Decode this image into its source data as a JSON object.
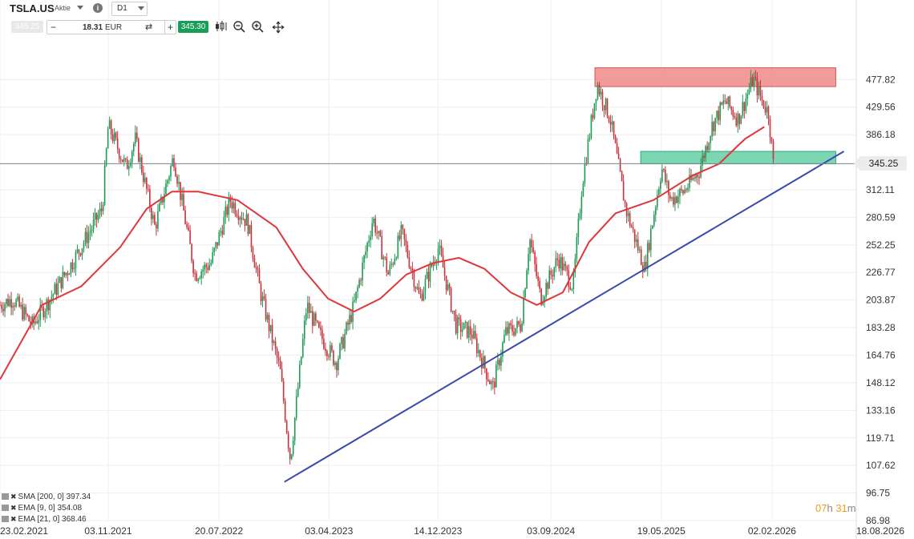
{
  "header": {
    "symbol": "TSLA.US",
    "asset_type": "Aktie",
    "timeframe": "D1",
    "bid": "345.25",
    "quantity": "18.31",
    "currency": "EUR",
    "ask": "345.30"
  },
  "current_price_label": "345.25",
  "countdown": {
    "hours": "07",
    "h_unit": "h",
    "minutes": "31",
    "m_unit": "m"
  },
  "indicators": [
    {
      "label": "SMA [200, 0] 397.34"
    },
    {
      "label": "EMA [9, 0] 354.08"
    },
    {
      "label": "EMA [21, 0] 368.46"
    }
  ],
  "colors": {
    "up_candle": "#1f9a55",
    "down_candle": "#c8323c",
    "ma_line": "#e0363a",
    "trend_line": "#3a4aa8",
    "resistance_zone": "#f08a8a",
    "support_zone": "#66cfa6",
    "ask_bg": "#1a9e57"
  },
  "icons": [
    "info-icon",
    "caret-down-icon",
    "swap-icon",
    "candlestick-icon",
    "zoom-out-icon",
    "zoom-in-icon",
    "crosshair-icon"
  ],
  "chart_data": {
    "type": "candlestick",
    "symbol": "TSLA.US",
    "timeframe": "D1",
    "scale": "log",
    "ylim": [
      86.98,
      560
    ],
    "y_ticks": [
      "477.82",
      "429.56",
      "386.18",
      "345.25",
      "312.11",
      "280.59",
      "252.25",
      "226.77",
      "203.87",
      "183.28",
      "164.76",
      "148.12",
      "133.16",
      "119.71",
      "107.62",
      "96.75",
      "86.98"
    ],
    "x_ticks": [
      "23.02.2021",
      "03.11.2021",
      "20.07.2022",
      "03.04.2023",
      "14.12.2023",
      "03.09.2024",
      "19.05.2025",
      "02.02.2026",
      "18.08.2026"
    ],
    "x_range": [
      "2021-02-23",
      "2026-08-18"
    ],
    "price_path": [
      [
        "2021-02-23",
        200
      ],
      [
        "2021-03-25",
        205
      ],
      [
        "2021-05-10",
        185
      ],
      [
        "2021-06-20",
        205
      ],
      [
        "2021-08-10",
        235
      ],
      [
        "2021-10-20",
        290
      ],
      [
        "2021-11-03",
        400
      ],
      [
        "2021-12-15",
        340
      ],
      [
        "2022-01-05",
        380
      ],
      [
        "2022-02-20",
        270
      ],
      [
        "2022-04-05",
        355
      ],
      [
        "2022-05-25",
        225
      ],
      [
        "2022-07-01",
        235
      ],
      [
        "2022-08-15",
        300
      ],
      [
        "2022-09-25",
        275
      ],
      [
        "2022-10-25",
        210
      ],
      [
        "2022-12-10",
        155
      ],
      [
        "2023-01-03",
        110
      ],
      [
        "2023-02-10",
        200
      ],
      [
        "2023-03-10",
        180
      ],
      [
        "2023-04-20",
        160
      ],
      [
        "2023-06-01",
        200
      ],
      [
        "2023-07-15",
        280
      ],
      [
        "2023-08-20",
        225
      ],
      [
        "2023-09-20",
        265
      ],
      [
        "2023-11-01",
        205
      ],
      [
        "2023-12-15",
        250
      ],
      [
        "2024-01-25",
        185
      ],
      [
        "2024-03-01",
        180
      ],
      [
        "2024-04-20",
        145
      ],
      [
        "2024-05-20",
        180
      ],
      [
        "2024-06-25",
        185
      ],
      [
        "2024-07-15",
        260
      ],
      [
        "2024-08-10",
        205
      ],
      [
        "2024-09-20",
        240
      ],
      [
        "2024-10-25",
        215
      ],
      [
        "2024-11-15",
        320
      ],
      [
        "2024-12-20",
        470
      ],
      [
        "2025-01-20",
        410
      ],
      [
        "2025-02-25",
        290
      ],
      [
        "2025-04-10",
        230
      ],
      [
        "2025-05-20",
        340
      ],
      [
        "2025-06-10",
        300
      ],
      [
        "2025-07-10",
        310
      ],
      [
        "2025-08-15",
        335
      ],
      [
        "2025-09-15",
        400
      ],
      [
        "2025-10-15",
        440
      ],
      [
        "2025-11-15",
        410
      ],
      [
        "2025-12-20",
        480
      ],
      [
        "2026-01-10",
        440
      ],
      [
        "2026-01-25",
        420
      ],
      [
        "2026-02-05",
        345
      ]
    ],
    "moving_average": [
      [
        "2021-02-23",
        150
      ],
      [
        "2021-06-01",
        200
      ],
      [
        "2021-09-01",
        215
      ],
      [
        "2021-12-01",
        250
      ],
      [
        "2022-02-01",
        290
      ],
      [
        "2022-04-01",
        310
      ],
      [
        "2022-06-01",
        310
      ],
      [
        "2022-09-01",
        300
      ],
      [
        "2022-12-01",
        270
      ],
      [
        "2023-02-01",
        230
      ],
      [
        "2023-04-01",
        205
      ],
      [
        "2023-06-01",
        195
      ],
      [
        "2023-08-01",
        205
      ],
      [
        "2023-10-01",
        225
      ],
      [
        "2023-12-01",
        235
      ],
      [
        "2024-02-01",
        240
      ],
      [
        "2024-04-01",
        230
      ],
      [
        "2024-06-01",
        210
      ],
      [
        "2024-08-01",
        200
      ],
      [
        "2024-10-01",
        210
      ],
      [
        "2024-12-01",
        255
      ],
      [
        "2025-02-01",
        285
      ],
      [
        "2025-05-01",
        300
      ],
      [
        "2025-08-01",
        330
      ],
      [
        "2025-10-01",
        345
      ],
      [
        "2025-12-01",
        380
      ],
      [
        "2026-01-15",
        398
      ]
    ],
    "trend_line": [
      [
        "2022-12-20",
        101
      ],
      [
        "2026-07-20",
        362
      ]
    ],
    "zones": [
      {
        "name": "resistance",
        "from": "2024-12-15",
        "to": "2026-07-01",
        "low": 465,
        "high": 500
      },
      {
        "name": "support",
        "from": "2025-04-01",
        "to": "2026-07-01",
        "low": 345,
        "high": 362
      }
    ],
    "current_price": 345.25,
    "grid": true
  }
}
